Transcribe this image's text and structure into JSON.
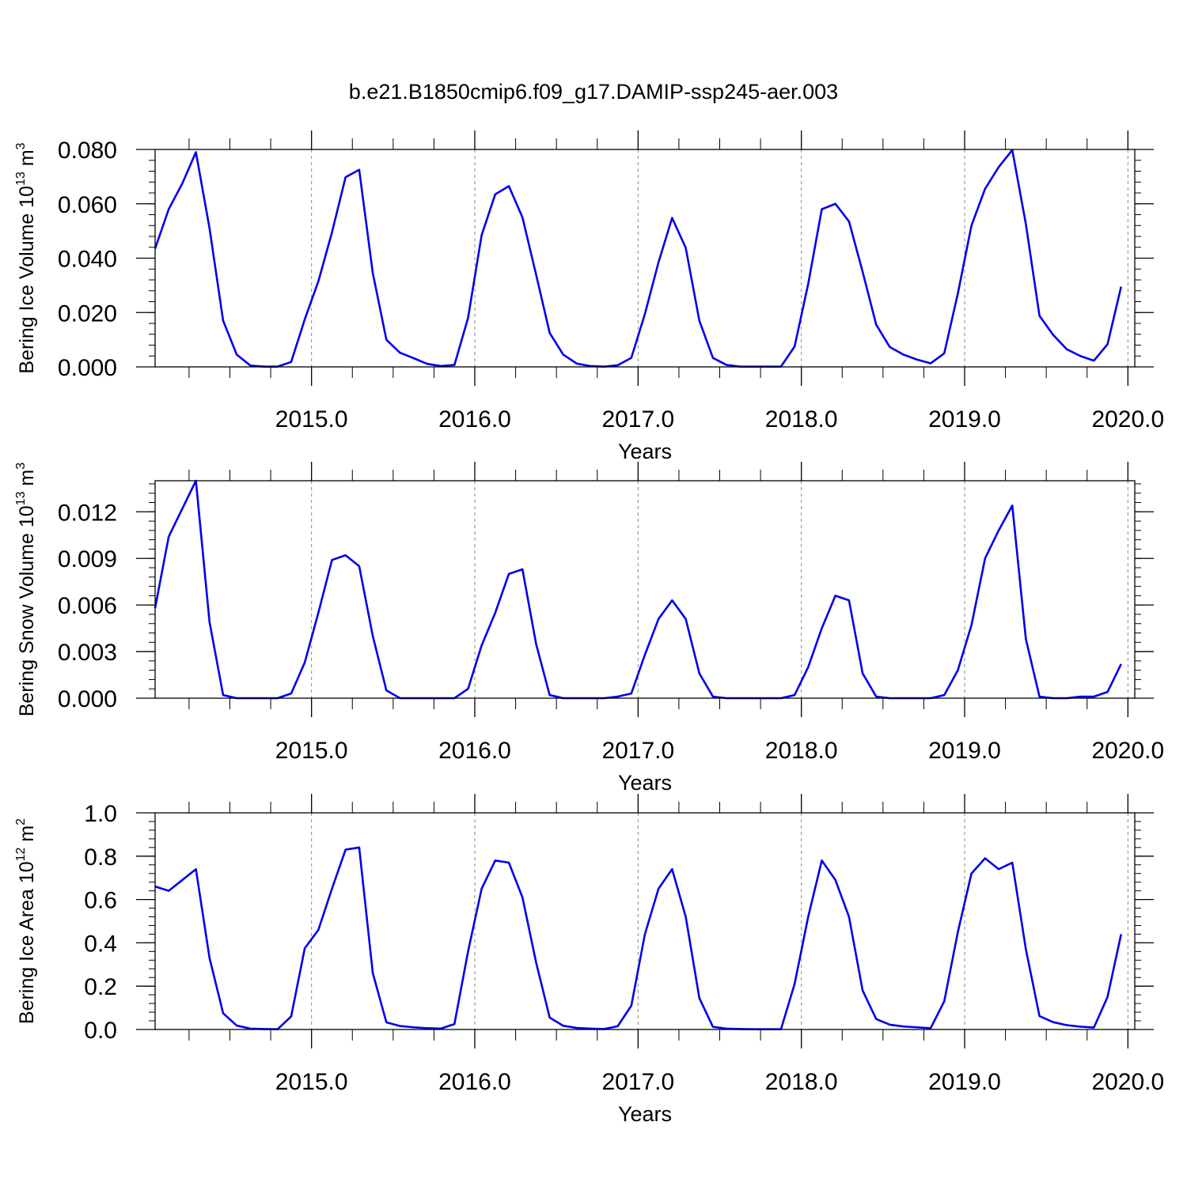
{
  "title": "b.e21.B1850cmip6.f09_g17.DAMIP-ssp245-aer.003",
  "colors": {
    "line": "#0000ee",
    "axis": "#000000",
    "grid": "#888888"
  },
  "chart_data": [
    {
      "type": "line",
      "xlabel": "Years",
      "ylabel_main": "Bering Ice Volume 10",
      "ylabel_exp": "13",
      "ylabel_unit": " m",
      "ylabel_unit_exp": "3",
      "xlim": [
        2014.042,
        2020.042
      ],
      "ylim": [
        0,
        0.08
      ],
      "xticks": [
        2015,
        2016,
        2017,
        2018,
        2019,
        2020
      ],
      "xtick_labels": [
        "2015.0",
        "2016.0",
        "2017.0",
        "2018.0",
        "2019.0",
        "2020.0"
      ],
      "yticks": [
        0,
        0.02,
        0.04,
        0.06,
        0.08
      ],
      "ytick_labels": [
        "0.000",
        "0.020",
        "0.040",
        "0.060",
        "0.080"
      ],
      "y_minor_step": 0.004,
      "x_start": 2014.042,
      "x_step": 0.08333,
      "values": [
        0.0435,
        0.058,
        0.0675,
        0.079,
        0.051,
        0.017,
        0.0045,
        0.0005,
        0.0001,
        0.0001,
        0.0018,
        0.0175,
        0.0315,
        0.0495,
        0.0698,
        0.0725,
        0.0345,
        0.01,
        0.0052,
        0.0032,
        0.0011,
        0.0003,
        0.0007,
        0.018,
        0.0485,
        0.0635,
        0.0665,
        0.055,
        0.034,
        0.0125,
        0.0045,
        0.0012,
        0.0003,
        0.0001,
        0.0006,
        0.0033,
        0.0195,
        0.0385,
        0.0548,
        0.0438,
        0.017,
        0.0033,
        0.0007,
        0.0001,
        0.0001,
        0.0001,
        0.0001,
        0.0075,
        0.0305,
        0.058,
        0.06,
        0.0535,
        0.035,
        0.0155,
        0.0073,
        0.0045,
        0.0027,
        0.0013,
        0.005,
        0.027,
        0.052,
        0.0655,
        0.0735,
        0.0798,
        0.0525,
        0.0188,
        0.0118,
        0.0065,
        0.004,
        0.0023,
        0.0083,
        0.0295
      ]
    },
    {
      "type": "line",
      "xlabel": "Years",
      "ylabel_main": "Bering Snow Volume 10",
      "ylabel_exp": "13",
      "ylabel_unit": " m",
      "ylabel_unit_exp": "3",
      "xlim": [
        2014.042,
        2020.042
      ],
      "ylim": [
        0,
        0.014
      ],
      "xticks": [
        2015,
        2016,
        2017,
        2018,
        2019,
        2020
      ],
      "xtick_labels": [
        "2015.0",
        "2016.0",
        "2017.0",
        "2018.0",
        "2019.0",
        "2020.0"
      ],
      "yticks": [
        0,
        0.003,
        0.006,
        0.009,
        0.012
      ],
      "ytick_labels": [
        "0.000",
        "0.003",
        "0.006",
        "0.009",
        "0.012"
      ],
      "y_minor_step": 0.0006,
      "x_start": 2014.042,
      "x_step": 0.08333,
      "values": [
        0.0058,
        0.0104,
        0.0122,
        0.014,
        0.0049,
        0.0002,
        0.0,
        0.0,
        0.0,
        0.0,
        0.0003,
        0.0023,
        0.0055,
        0.0089,
        0.0092,
        0.0085,
        0.004,
        0.0005,
        0.0,
        0.0,
        0.0,
        0.0,
        0.0,
        0.0006,
        0.0034,
        0.0055,
        0.008,
        0.0083,
        0.0035,
        0.0002,
        0.0,
        0.0,
        0.0,
        0.0,
        0.0001,
        0.0003,
        0.0028,
        0.0051,
        0.0063,
        0.0051,
        0.0016,
        0.0001,
        0.0,
        0.0,
        0.0,
        0.0,
        0.0,
        0.0002,
        0.002,
        0.0045,
        0.0066,
        0.0063,
        0.0016,
        0.0001,
        0.0,
        0.0,
        0.0,
        0.0,
        0.0002,
        0.0018,
        0.0047,
        0.009,
        0.0108,
        0.0124,
        0.0038,
        0.0001,
        0.0,
        0.0,
        0.0001,
        0.0001,
        0.0004,
        0.0022
      ]
    },
    {
      "type": "line",
      "xlabel": "Years",
      "ylabel_main": "Bering Ice Area 10",
      "ylabel_exp": "12",
      "ylabel_unit": " m",
      "ylabel_unit_exp": "2",
      "xlim": [
        2014.042,
        2020.042
      ],
      "ylim": [
        0,
        1.0
      ],
      "xticks": [
        2015,
        2016,
        2017,
        2018,
        2019,
        2020
      ],
      "xtick_labels": [
        "2015.0",
        "2016.0",
        "2017.0",
        "2018.0",
        "2019.0",
        "2020.0"
      ],
      "yticks": [
        0,
        0.2,
        0.4,
        0.6,
        0.8,
        1.0
      ],
      "ytick_labels": [
        "0.0",
        "0.2",
        "0.4",
        "0.6",
        "0.8",
        "1.0"
      ],
      "y_minor_step": 0.04,
      "x_start": 2014.042,
      "x_step": 0.08333,
      "values": [
        0.66,
        0.64,
        0.69,
        0.74,
        0.33,
        0.075,
        0.018,
        0.004,
        0.002,
        0.001,
        0.06,
        0.375,
        0.46,
        0.65,
        0.83,
        0.84,
        0.26,
        0.033,
        0.016,
        0.01,
        0.006,
        0.004,
        0.025,
        0.36,
        0.65,
        0.78,
        0.77,
        0.61,
        0.31,
        0.055,
        0.017,
        0.007,
        0.004,
        0.002,
        0.015,
        0.11,
        0.44,
        0.65,
        0.74,
        0.52,
        0.145,
        0.012,
        0.004,
        0.002,
        0.001,
        0.001,
        0.001,
        0.21,
        0.52,
        0.78,
        0.69,
        0.52,
        0.18,
        0.048,
        0.022,
        0.014,
        0.01,
        0.006,
        0.13,
        0.45,
        0.72,
        0.79,
        0.74,
        0.77,
        0.37,
        0.062,
        0.034,
        0.02,
        0.013,
        0.009,
        0.15,
        0.44
      ]
    }
  ]
}
